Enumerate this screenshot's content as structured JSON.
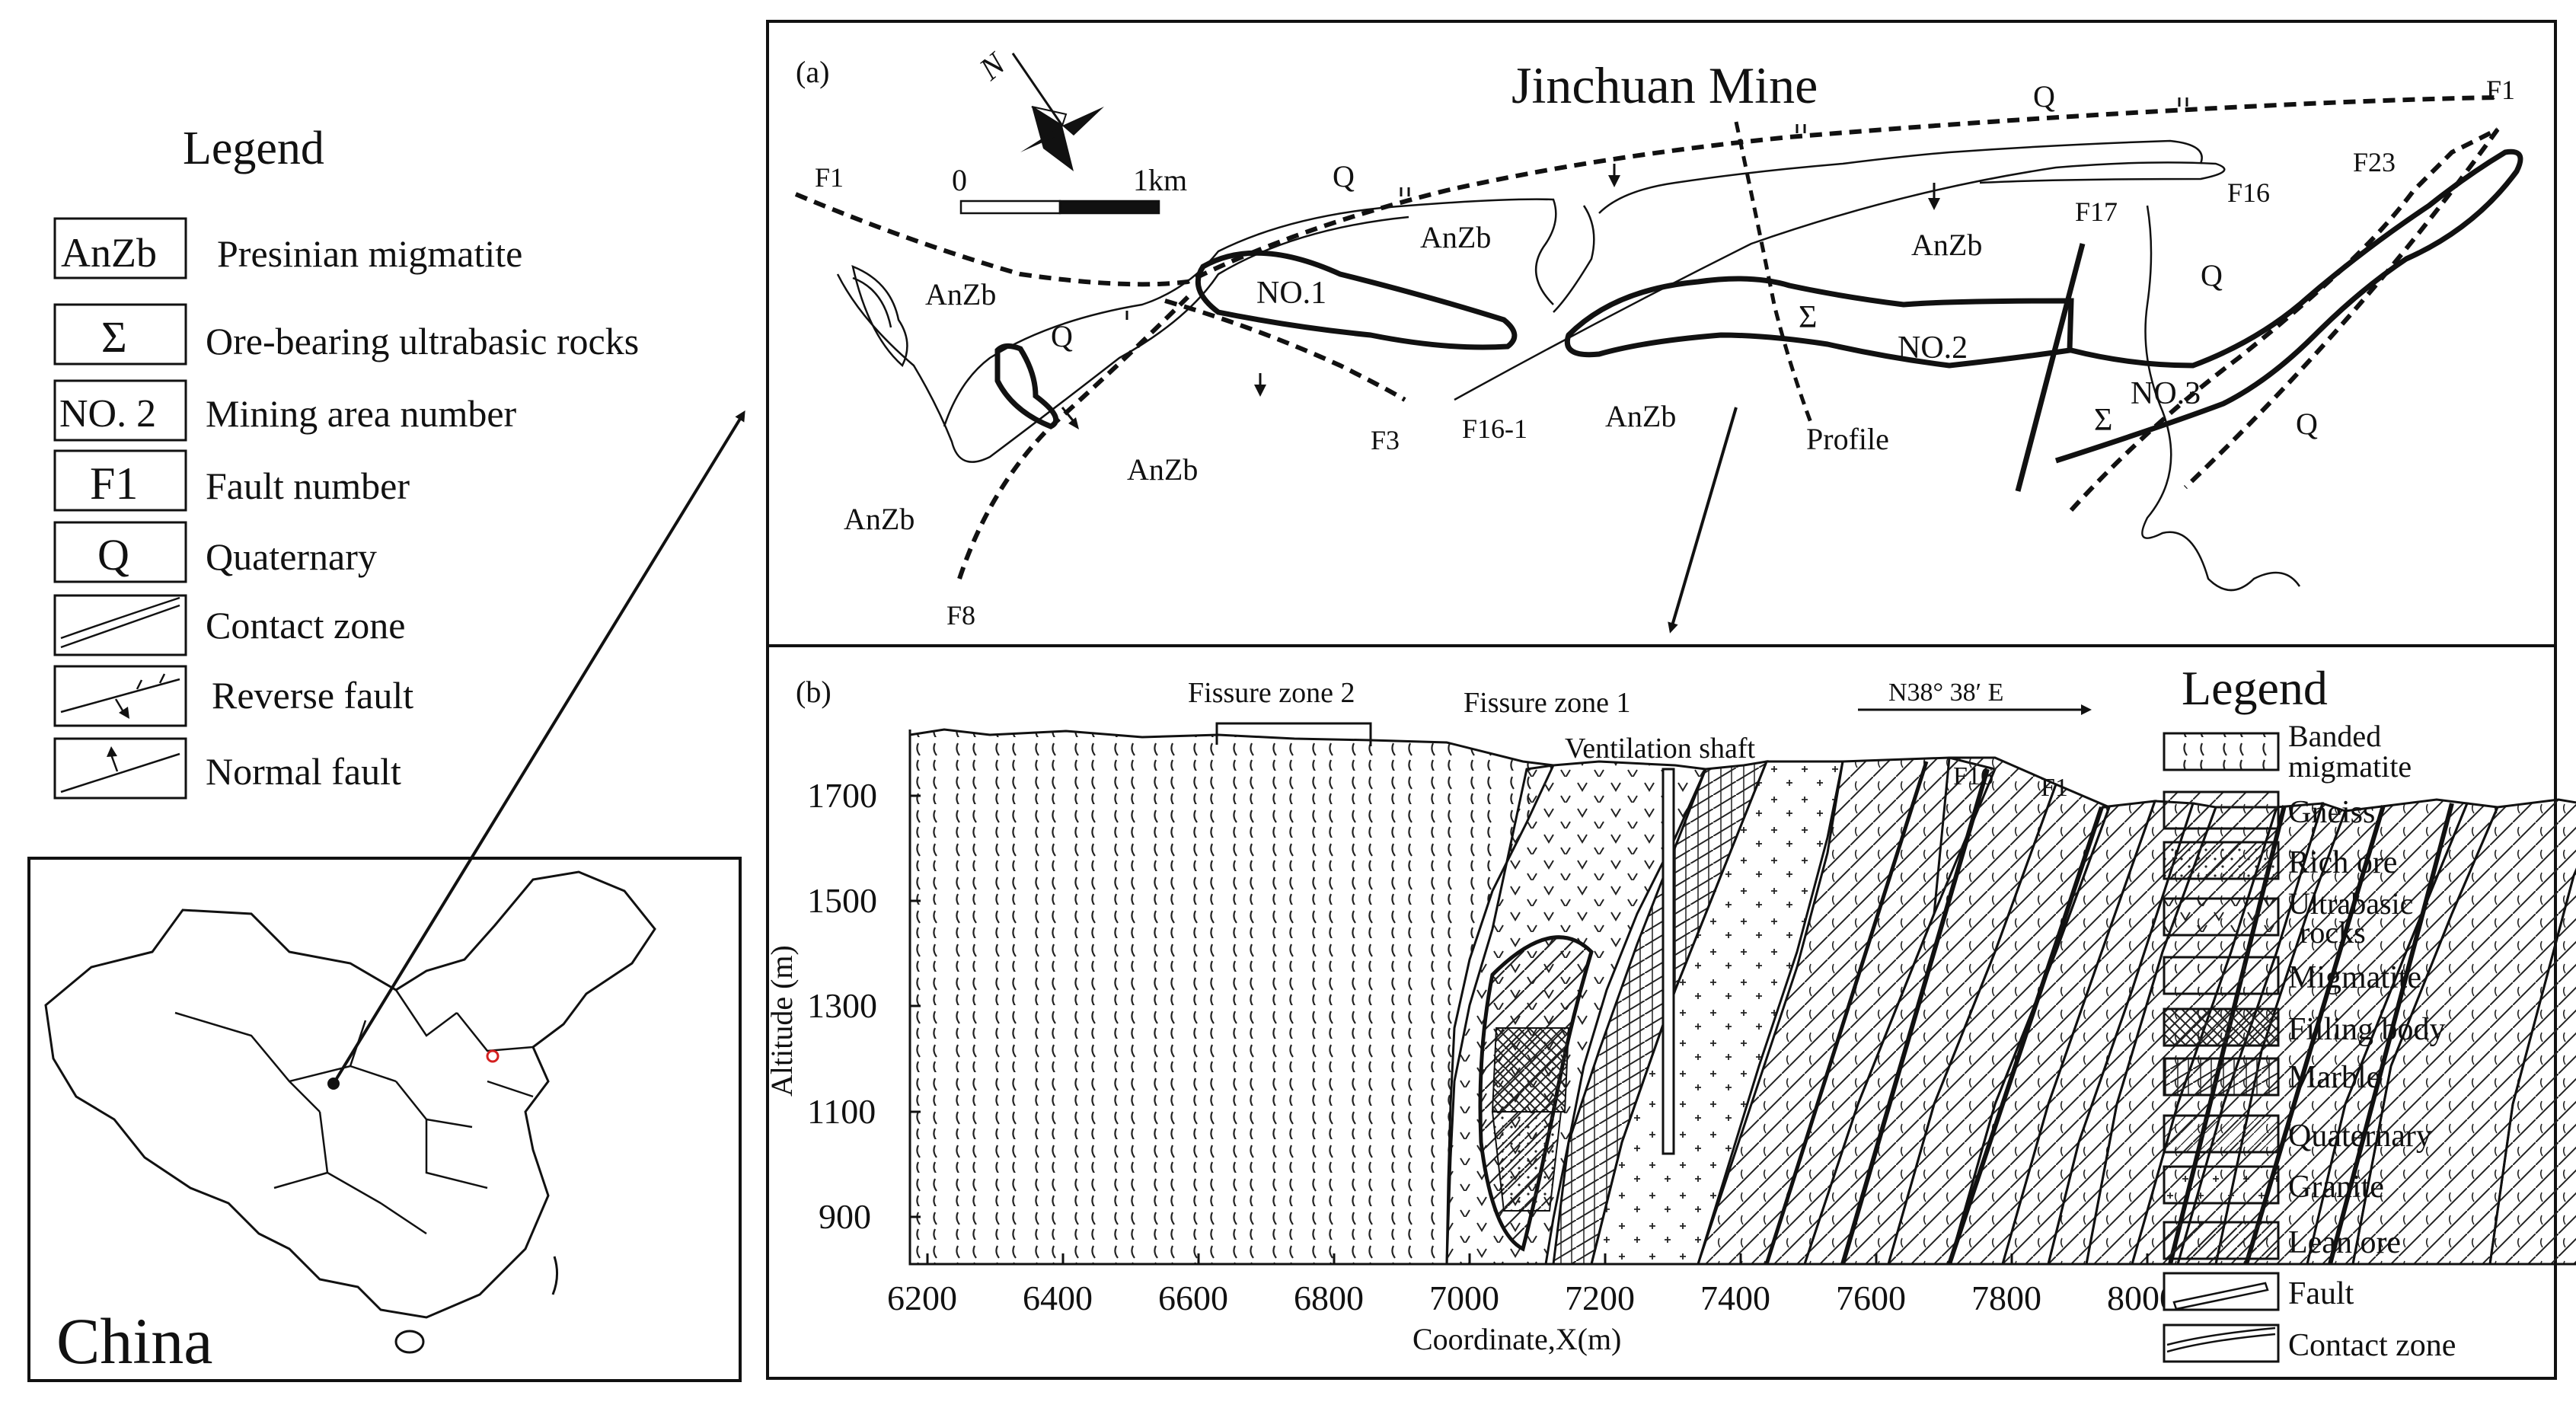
{
  "left_legend": {
    "title": "Legend",
    "items": [
      {
        "symbol": "AnZb",
        "label": "Presinian migmatite"
      },
      {
        "symbol": "Σ",
        "label": "Ore-bearing ultrabasic rocks"
      },
      {
        "symbol": "NO. 2",
        "label": "Mining area number"
      },
      {
        "symbol": "F1",
        "label": "Fault number"
      },
      {
        "symbol": "Q",
        "label": "Quaternary"
      },
      {
        "symbol": "",
        "label": "Contact zone"
      },
      {
        "symbol": "",
        "label": "Reverse fault"
      },
      {
        "symbol": "",
        "label": "Normal fault"
      }
    ]
  },
  "china_map": {
    "label": "China"
  },
  "map_a": {
    "panel_label": "(a)",
    "title": "Jinchuan Mine",
    "north": "N",
    "scale": {
      "start": "0",
      "end": "1km"
    },
    "labels": {
      "q1": "Q",
      "q2": "Q",
      "q3": "Q",
      "q4": "Q",
      "q5": "Q",
      "anzb1": "AnZb",
      "anzb2": "AnZb",
      "anzb3": "AnZb",
      "anzb4": "AnZb",
      "anzb5": "AnZb",
      "anzb6": "AnZb",
      "no1": "NO.1",
      "no2": "NO.2",
      "no3": "NO.3",
      "sigma1": "Σ",
      "sigma2": "Σ",
      "f1_left": "F1",
      "f1_right": "F1",
      "f3": "F3",
      "f8": "F8",
      "f16": "F16",
      "f16_1": "F16-1",
      "f17": "F17",
      "f23": "F23",
      "profile": "Profile"
    }
  },
  "section_b": {
    "panel_label": "(b)",
    "direction": "N38°  38′  E",
    "labels": {
      "fissure2": "Fissure zone 2",
      "fissure1": "Fissure zone 1",
      "shaft": "Ventilation shaft",
      "f16": "F16",
      "f1": "F1"
    },
    "y_axis": {
      "label": "Altitude (m)",
      "ticks": [
        "1700",
        "1500",
        "1300",
        "1100",
        "900"
      ]
    },
    "x_axis": {
      "label": "Coordinate,X(m)",
      "ticks": [
        "6200",
        "6400",
        "6600",
        "6800",
        "7000",
        "7200",
        "7400",
        "7600",
        "7800",
        "8000"
      ]
    }
  },
  "right_legend": {
    "title": "Legend",
    "items": [
      {
        "line1": "Banded",
        "line2": "migmatite"
      },
      {
        "line1": "Gneiss",
        "line2": ""
      },
      {
        "line1": "Rich ore",
        "line2": ""
      },
      {
        "line1": "Ultrabasic",
        "line2": "rocks"
      },
      {
        "line1": "Migmatite",
        "line2": ""
      },
      {
        "line1": "Filling body",
        "line2": ""
      },
      {
        "line1": "Marble",
        "line2": ""
      },
      {
        "line1": "Quaternary",
        "line2": ""
      },
      {
        "line1": "Granite",
        "line2": ""
      },
      {
        "line1": "Lean ore",
        "line2": ""
      },
      {
        "line1": "Fault",
        "line2": ""
      },
      {
        "line1": "Contact zone",
        "line2": ""
      }
    ]
  }
}
